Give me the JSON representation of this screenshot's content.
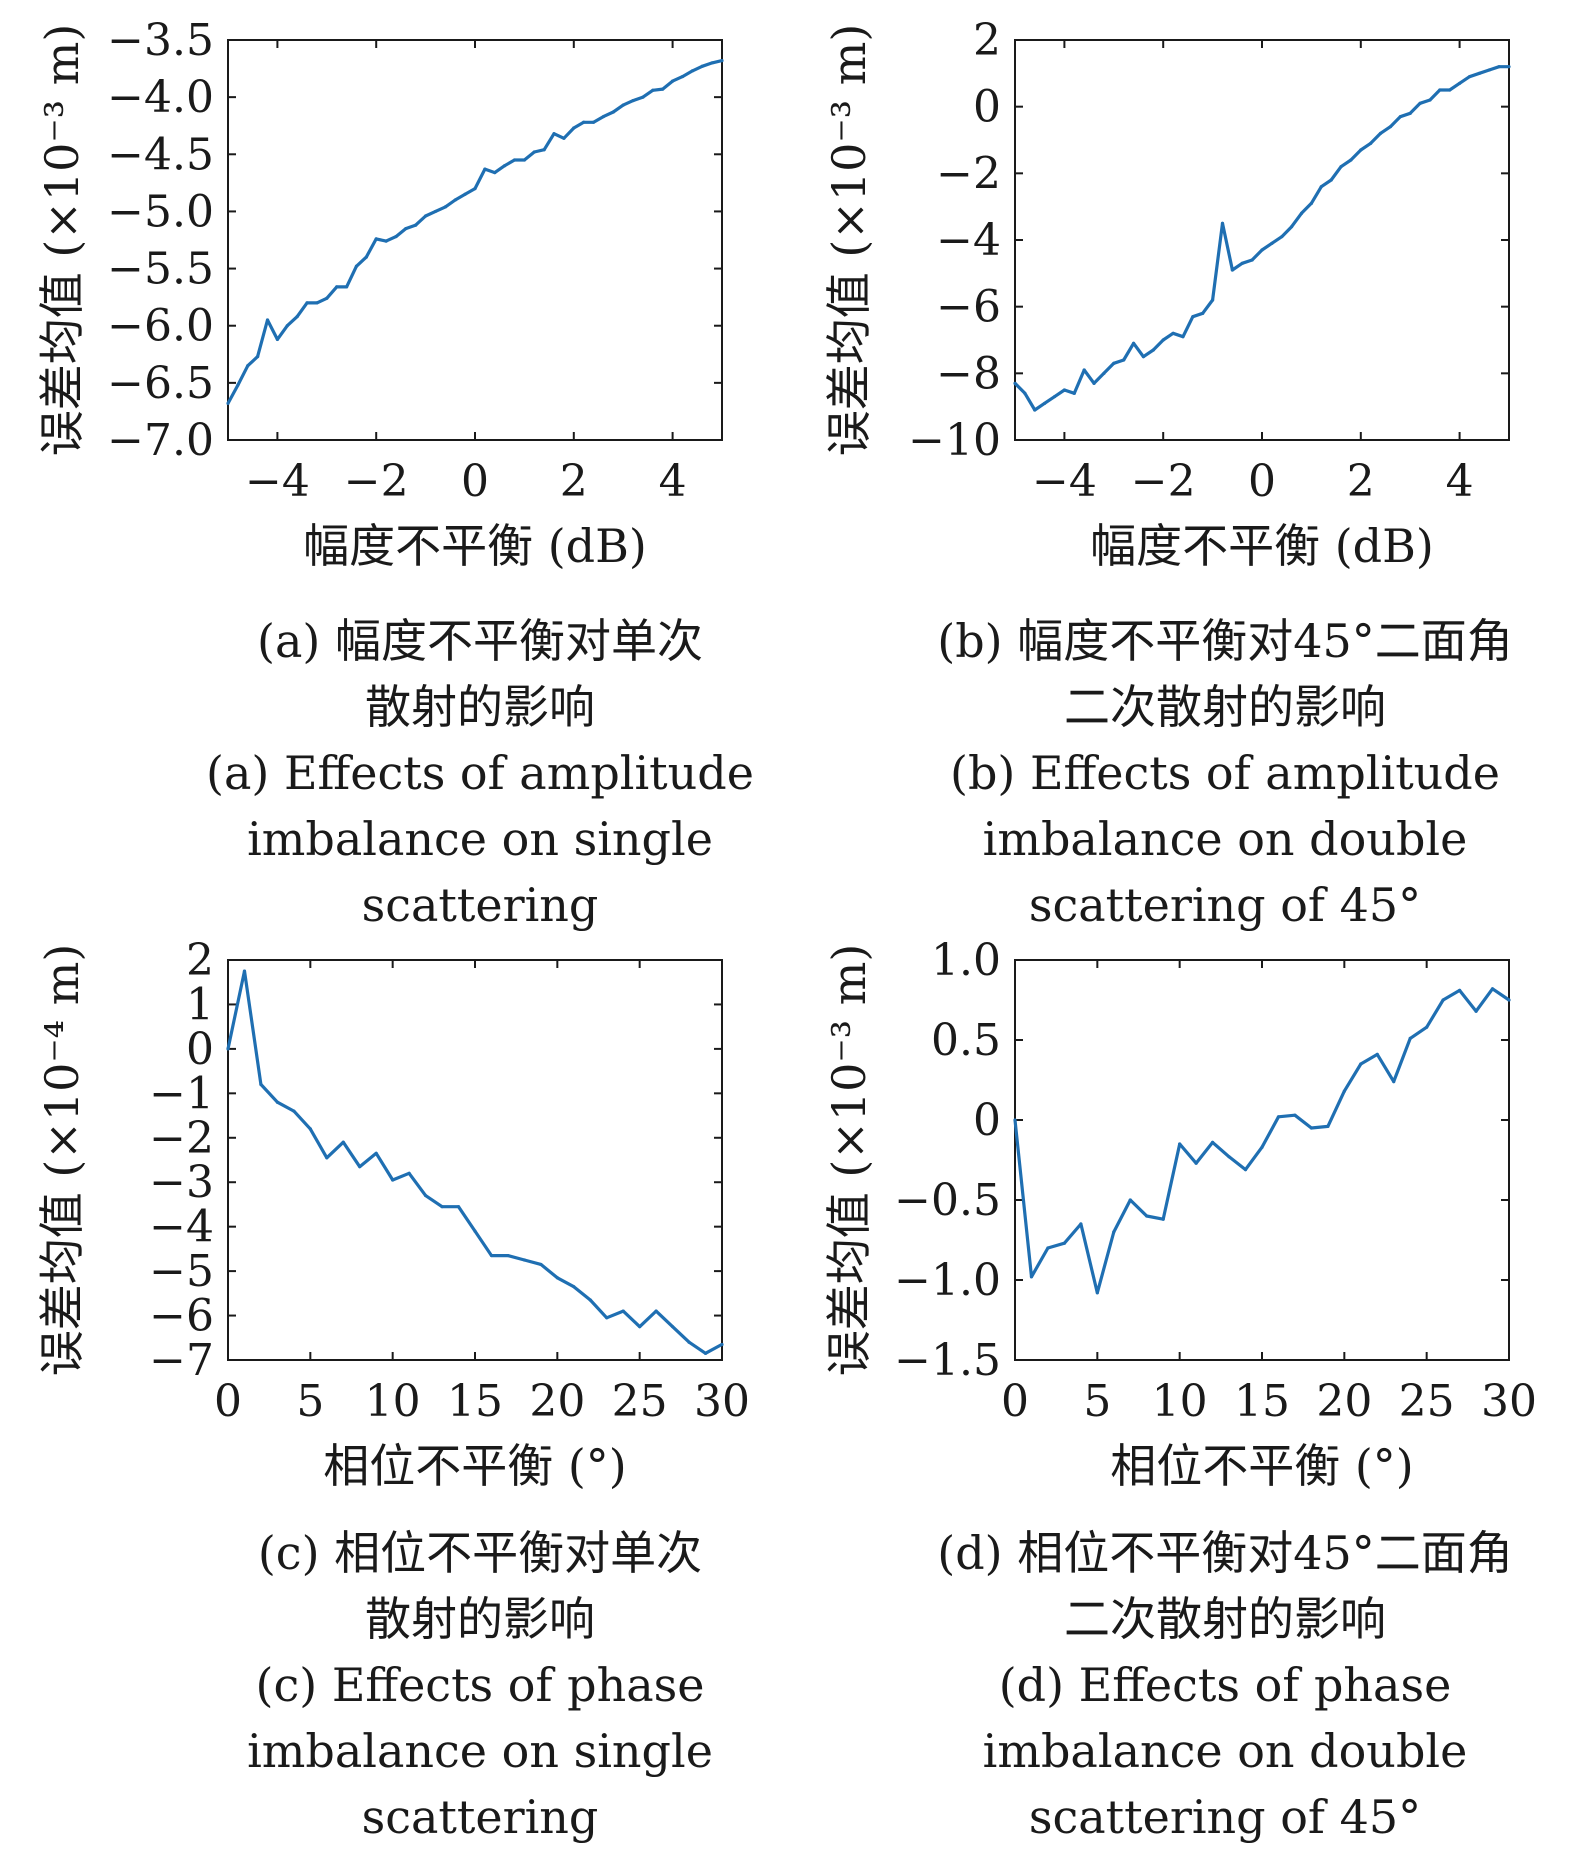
{
  "line_color": "#1f6fb2",
  "chart_data": [
    {
      "id": "a",
      "type": "line",
      "xlabel": "幅度不平衡 (dB)",
      "ylabel": "误差均值 (×10⁻³ m)",
      "xlim": [
        -5,
        5
      ],
      "ylim": [
        -7.0,
        -3.5
      ],
      "xticks": [
        -4,
        -2,
        0,
        2,
        4
      ],
      "xtick_labels": [
        "−4",
        "−2",
        "0",
        "2",
        "4"
      ],
      "yticks": [
        -3.5,
        -4.0,
        -4.5,
        -5.0,
        -5.5,
        -6.0,
        -6.5,
        -7.0
      ],
      "ytick_labels": [
        "−3.5",
        "−4.0",
        "−4.5",
        "−5.0",
        "−5.5",
        "−6.0",
        "−6.5",
        "−7.0"
      ],
      "x": [
        -5.0,
        -4.8,
        -4.6,
        -4.4,
        -4.2,
        -4.0,
        -3.8,
        -3.6,
        -3.4,
        -3.2,
        -3.0,
        -2.8,
        -2.6,
        -2.4,
        -2.2,
        -2.0,
        -1.8,
        -1.6,
        -1.4,
        -1.2,
        -1.0,
        -0.8,
        -0.6,
        -0.4,
        -0.2,
        0.0,
        0.2,
        0.4,
        0.6,
        0.8,
        1.0,
        1.2,
        1.4,
        1.6,
        1.8,
        2.0,
        2.2,
        2.4,
        2.6,
        2.8,
        3.0,
        3.2,
        3.4,
        3.6,
        3.8,
        4.0,
        4.2,
        4.4,
        4.6,
        4.8,
        5.0
      ],
      "y": [
        -6.68,
        -6.52,
        -6.35,
        -6.27,
        -5.95,
        -6.12,
        -6.0,
        -5.92,
        -5.8,
        -5.8,
        -5.76,
        -5.66,
        -5.66,
        -5.48,
        -5.4,
        -5.24,
        -5.26,
        -5.22,
        -5.15,
        -5.12,
        -5.04,
        -5.0,
        -4.96,
        -4.9,
        -4.85,
        -4.8,
        -4.63,
        -4.66,
        -4.6,
        -4.55,
        -4.55,
        -4.48,
        -4.46,
        -4.32,
        -4.36,
        -4.27,
        -4.22,
        -4.22,
        -4.17,
        -4.13,
        -4.07,
        -4.03,
        -4.0,
        -3.94,
        -3.93,
        -3.86,
        -3.82,
        -3.77,
        -3.73,
        -3.7,
        -3.68
      ],
      "caption": [
        "(a) 幅度不平衡对单次",
        "散射的影响",
        "(a) Effects of amplitude",
        "imbalance on single",
        "scattering"
      ]
    },
    {
      "id": "b",
      "type": "line",
      "xlabel": "幅度不平衡 (dB)",
      "ylabel": "误差均值 (×10⁻³ m)",
      "xlim": [
        -5,
        5
      ],
      "ylim": [
        -10,
        2
      ],
      "xticks": [
        -4,
        -2,
        0,
        2,
        4
      ],
      "xtick_labels": [
        "−4",
        "−2",
        "0",
        "2",
        "4"
      ],
      "yticks": [
        2,
        0,
        -2,
        -4,
        -6,
        -8,
        -10
      ],
      "ytick_labels": [
        "2",
        "0",
        "−2",
        "−4",
        "−6",
        "−8",
        "−10"
      ],
      "x": [
        -5.0,
        -4.8,
        -4.6,
        -4.4,
        -4.2,
        -4.0,
        -3.8,
        -3.6,
        -3.4,
        -3.2,
        -3.0,
        -2.8,
        -2.6,
        -2.4,
        -2.2,
        -2.0,
        -1.8,
        -1.6,
        -1.4,
        -1.2,
        -1.0,
        -0.8,
        -0.6,
        -0.4,
        -0.2,
        0.0,
        0.2,
        0.4,
        0.6,
        0.8,
        1.0,
        1.2,
        1.4,
        1.6,
        1.8,
        2.0,
        2.2,
        2.4,
        2.6,
        2.8,
        3.0,
        3.2,
        3.4,
        3.6,
        3.8,
        4.0,
        4.2,
        4.4,
        4.6,
        4.8,
        5.0
      ],
      "y": [
        -8.3,
        -8.6,
        -9.1,
        -8.9,
        -8.7,
        -8.5,
        -8.6,
        -7.9,
        -8.3,
        -8.0,
        -7.7,
        -7.6,
        -7.1,
        -7.5,
        -7.3,
        -7.0,
        -6.8,
        -6.9,
        -6.3,
        -6.2,
        -5.8,
        -3.5,
        -4.9,
        -4.7,
        -4.6,
        -4.3,
        -4.1,
        -3.9,
        -3.6,
        -3.2,
        -2.9,
        -2.4,
        -2.2,
        -1.8,
        -1.6,
        -1.3,
        -1.1,
        -0.8,
        -0.6,
        -0.3,
        -0.2,
        0.1,
        0.2,
        0.5,
        0.5,
        0.7,
        0.9,
        1.0,
        1.1,
        1.2,
        1.2
      ],
      "caption": [
        "(b) 幅度不平衡对45°二面角",
        "二次散射的影响",
        "(b) Effects of amplitude",
        "imbalance on double",
        "scattering of 45°"
      ]
    },
    {
      "id": "c",
      "type": "line",
      "xlabel": "相位不平衡 (°)",
      "ylabel": "误差均值 (×10⁻⁴ m)",
      "xlim": [
        0,
        30
      ],
      "ylim": [
        -7,
        2
      ],
      "xticks": [
        0,
        5,
        10,
        15,
        20,
        25,
        30
      ],
      "xtick_labels": [
        "0",
        "5",
        "10",
        "15",
        "20",
        "25",
        "30"
      ],
      "yticks": [
        2,
        1,
        0,
        -1,
        -2,
        -3,
        -4,
        -5,
        -6,
        -7
      ],
      "ytick_labels": [
        "2",
        "1",
        "0",
        "−1",
        "−2",
        "−3",
        "−4",
        "−5",
        "−6",
        "−7"
      ],
      "x": [
        0,
        1,
        2,
        3,
        4,
        5,
        6,
        7,
        8,
        9,
        10,
        11,
        12,
        13,
        14,
        15,
        16,
        17,
        18,
        19,
        20,
        21,
        22,
        23,
        24,
        25,
        26,
        27,
        28,
        29,
        30
      ],
      "y": [
        0.0,
        1.75,
        -0.8,
        -1.2,
        -1.4,
        -1.8,
        -2.45,
        -2.1,
        -2.65,
        -2.35,
        -2.95,
        -2.8,
        -3.3,
        -3.55,
        -3.55,
        -4.1,
        -4.65,
        -4.65,
        -4.75,
        -4.85,
        -5.15,
        -5.35,
        -5.65,
        -6.05,
        -5.9,
        -6.25,
        -5.9,
        -6.25,
        -6.6,
        -6.85,
        -6.65
      ],
      "caption": [
        "(c) 相位不平衡对单次",
        "散射的影响",
        "(c) Effects of phase",
        "imbalance on single",
        "scattering"
      ]
    },
    {
      "id": "d",
      "type": "line",
      "xlabel": "相位不平衡 (°)",
      "ylabel": "误差均值 (×10⁻³ m)",
      "xlim": [
        0,
        30
      ],
      "ylim": [
        -1.5,
        1.0
      ],
      "xticks": [
        0,
        5,
        10,
        15,
        20,
        25,
        30
      ],
      "xtick_labels": [
        "0",
        "5",
        "10",
        "15",
        "20",
        "25",
        "30"
      ],
      "yticks": [
        1.0,
        0.5,
        0,
        -0.5,
        -1.0,
        -1.5
      ],
      "ytick_labels": [
        "1.0",
        "0.5",
        "0",
        "−0.5",
        "−1.0",
        "−1.5"
      ],
      "x": [
        0,
        1,
        2,
        3,
        4,
        5,
        6,
        7,
        8,
        9,
        10,
        11,
        12,
        13,
        14,
        15,
        16,
        17,
        18,
        19,
        20,
        21,
        22,
        23,
        24,
        25,
        26,
        27,
        28,
        29,
        30
      ],
      "y": [
        0.0,
        -0.98,
        -0.8,
        -0.77,
        -0.65,
        -1.08,
        -0.7,
        -0.5,
        -0.6,
        -0.62,
        -0.15,
        -0.27,
        -0.14,
        -0.23,
        -0.31,
        -0.17,
        0.02,
        0.03,
        -0.05,
        -0.04,
        0.18,
        0.35,
        0.41,
        0.24,
        0.51,
        0.58,
        0.75,
        0.81,
        0.68,
        0.82,
        0.75
      ],
      "caption": [
        "(d) 相位不平衡对45°二面角",
        "二次散射的影响",
        "(d) Effects of phase",
        "imbalance on double",
        "scattering of 45°"
      ]
    }
  ]
}
